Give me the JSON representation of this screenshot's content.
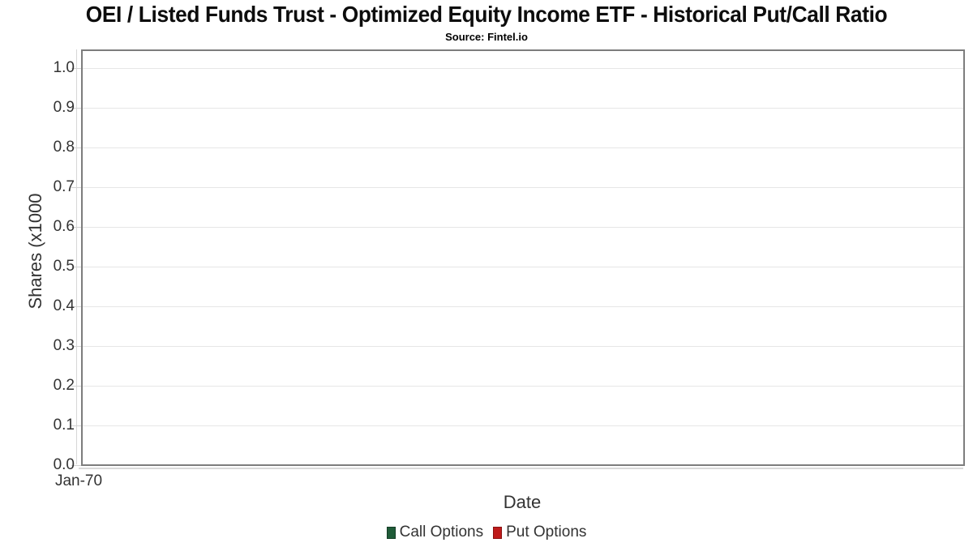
{
  "chart_data": {
    "type": "line",
    "title": "OEI / Listed Funds Trust - Optimized Equity Income ETF - Historical Put/Call Ratio",
    "subtitle": "Source: Fintel.io",
    "xlabel": "Date",
    "ylabel": "Shares (x1000",
    "x_tick_labels": [
      "Jan-70"
    ],
    "y_tick_labels": [
      "1.0",
      "0.9",
      "0.8",
      "0.7",
      "0.6",
      "0.5",
      "0.4",
      "0.3",
      "0.2",
      "0.1",
      "0.0"
    ],
    "y_tick_values": [
      1.0,
      0.9,
      0.8,
      0.7,
      0.6,
      0.5,
      0.4,
      0.3,
      0.2,
      0.1,
      0.0
    ],
    "ylim": [
      0.0,
      1.05
    ],
    "grid": true,
    "legend_position": "bottom",
    "series": [
      {
        "name": "Call Options",
        "color": "#1f5b38",
        "border_color": "#143d25",
        "values": []
      },
      {
        "name": "Put Options",
        "color": "#bf1b1b",
        "border_color": "#8a1212",
        "values": []
      }
    ]
  }
}
